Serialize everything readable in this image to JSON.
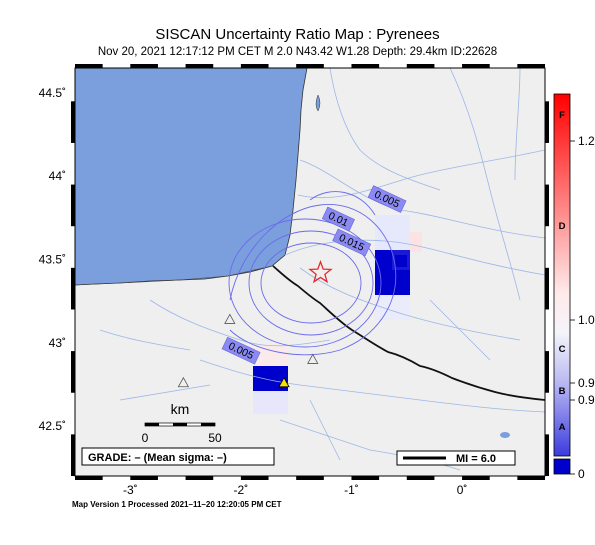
{
  "header": {
    "title": "SISCAN Uncertainty Ratio Map : Pyrenees",
    "subtitle": "Nov 20, 2021 12:17:12 PM CET   M 2.0   N43.42 W1.28   Depth: 29.4km   ID:22628"
  },
  "map": {
    "lon_range": [
      -3.5,
      0.75
    ],
    "lat_range": [
      42.2,
      44.65
    ],
    "lon_ticks": [
      {
        "value": -3,
        "label": "-3˚"
      },
      {
        "value": -2,
        "label": "-2˚"
      },
      {
        "value": -1,
        "label": "-1˚"
      },
      {
        "value": 0,
        "label": "0˚"
      }
    ],
    "lat_ticks": [
      {
        "value": 44.5,
        "label": "44.5˚"
      },
      {
        "value": 44,
        "label": "44˚"
      },
      {
        "value": 43.5,
        "label": "43.5˚"
      },
      {
        "value": 43,
        "label": "43˚"
      },
      {
        "value": 42.5,
        "label": "42.5˚"
      }
    ],
    "epicenter": {
      "lon": -1.28,
      "lat": 43.42,
      "symbol": "star-icon",
      "color": "#e8282a"
    },
    "contours": [
      {
        "label": "0.005",
        "label_lon": -0.68,
        "label_lat": 43.86
      },
      {
        "label": "0.01",
        "label_lon": -1.12,
        "label_lat": 43.74
      },
      {
        "label": "0.015",
        "label_lon": -1.0,
        "label_lat": 43.6
      },
      {
        "label": "0.005",
        "label_lon": -2.0,
        "label_lat": 42.95
      }
    ],
    "stations": [
      {
        "lon": -2.1,
        "lat": 43.14,
        "symbol": "triangle-open"
      },
      {
        "lon": -1.35,
        "lat": 42.9,
        "symbol": "triangle-open"
      },
      {
        "lon": -2.52,
        "lat": 42.76,
        "symbol": "triangle-open"
      },
      {
        "lon": -1.61,
        "lat": 42.76,
        "symbol": "triangle-filled",
        "color": "#f5e400"
      }
    ],
    "scale_bar": {
      "title": "km",
      "start_label": "0",
      "end_label": "50"
    },
    "grade_box": "GRADE: – (Mean sigma: –)",
    "mi_legend": "MI = 6.0"
  },
  "colorbar": {
    "tick_labels": [
      "1.2",
      "1.0",
      "0.9",
      "0.9",
      "0"
    ],
    "grade_letters": [
      "F",
      "D",
      "C",
      "B",
      "A"
    ],
    "high_color": "#ff0000",
    "low_color": "#0000cc"
  },
  "footer": {
    "text": "Map Version 1 Processed 2021–11–20 12:20:05 PM CET"
  }
}
